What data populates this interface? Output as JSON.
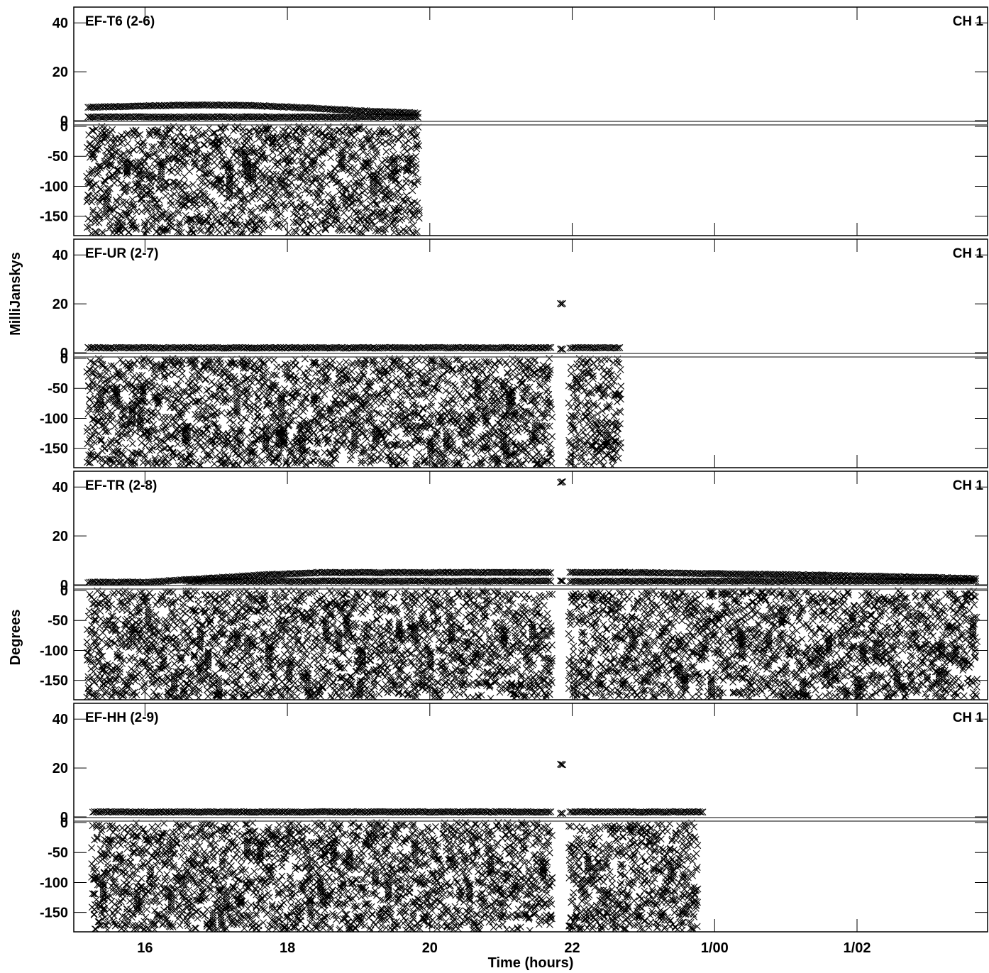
{
  "chart_data": {
    "type": "scatter",
    "marker": "x",
    "marker_color": "#000000",
    "xlabel": "Time (hours)",
    "x_range": [
      "15:00",
      "27:50"
    ],
    "x_ticks": [
      {
        "value": "16:00",
        "label": "16"
      },
      {
        "value": "18:00",
        "label": "18"
      },
      {
        "value": "20:00",
        "label": "20"
      },
      {
        "value": "22:00",
        "label": "22"
      },
      {
        "value": "24:00",
        "label": "1/00"
      },
      {
        "value": "26:00",
        "label": "1/02"
      }
    ],
    "y_axis_labels": [
      "MilliJanskys",
      "Degrees"
    ],
    "panels": [
      {
        "label": "EF-T6 (2-6)",
        "channel": "CH 1",
        "ylabel": "MilliJanskys",
        "amp_range_mJy": [
          0,
          45
        ],
        "amp_ticks": [
          40,
          20,
          0
        ],
        "phase_range_deg": [
          -180,
          0
        ],
        "phase_ticks": [
          0,
          -50,
          -100,
          -150
        ],
        "series": [
          {
            "name": "amplitude",
            "unit": "mJy",
            "segments": [
              {
                "start": "15:12",
                "end": "19:50",
                "values": [
                  5.5,
                  6.0,
                  6.4,
                  6.2,
                  5.2,
                  4.0,
                  3.0
                ]
              }
            ]
          },
          {
            "name": "phase",
            "unit": "deg",
            "segments": [
              {
                "start": "15:12",
                "end": "19:50",
                "range": [
                  -180,
                  0
                ]
              }
            ]
          }
        ]
      },
      {
        "label": "EF-UR (2-7)",
        "channel": "CH 1",
        "ylabel": "MilliJanskys",
        "amp_range_mJy": [
          0,
          45
        ],
        "amp_ticks": [
          40,
          20,
          0
        ],
        "phase_range_deg": [
          -180,
          0
        ],
        "phase_ticks": [
          0,
          -50,
          -100,
          -150
        ],
        "series": [
          {
            "name": "amplitude",
            "unit": "mJy",
            "segments": [
              {
                "start": "15:12",
                "end": "21:42",
                "values": [
                  2.0,
                  2.0,
                  2.0,
                  2.0
                ]
              },
              {
                "start": "21:50",
                "end": "21:52",
                "values": [
                  20.0
                ]
              },
              {
                "start": "21:58",
                "end": "22:40",
                "values": [
                  2.0,
                  2.0
                ]
              }
            ]
          },
          {
            "name": "phase",
            "unit": "deg",
            "segments": [
              {
                "start": "15:12",
                "end": "21:42",
                "range": [
                  -180,
                  0
                ]
              },
              {
                "start": "21:58",
                "end": "22:40",
                "range": [
                  -180,
                  0
                ]
              }
            ]
          }
        ]
      },
      {
        "label": "EF-TR (2-8)",
        "channel": "CH 1",
        "ylabel": "Degrees",
        "amp_range_mJy": [
          0,
          45
        ],
        "amp_ticks": [
          40,
          20,
          0
        ],
        "phase_range_deg": [
          -180,
          0
        ],
        "phase_ticks": [
          0,
          -50,
          -100,
          -150
        ],
        "series": [
          {
            "name": "amplitude",
            "unit": "mJy",
            "segments": [
              {
                "start": "15:12",
                "end": "21:42",
                "values": [
                  1.0,
                  1.0,
                  2.5,
                  4.0,
                  5.0,
                  5.0,
                  5.0,
                  5.0,
                  5.0
                ]
              },
              {
                "start": "21:50",
                "end": "21:52",
                "values": [
                  42.0
                ]
              },
              {
                "start": "21:58",
                "end": "27:40",
                "values": [
                  5.0,
                  5.0,
                  4.6,
                  4.2,
                  3.8,
                  3.2,
                  2.5
                ]
              }
            ]
          },
          {
            "name": "phase",
            "unit": "deg",
            "segments": [
              {
                "start": "15:12",
                "end": "21:42",
                "range": [
                  -180,
                  0
                ]
              },
              {
                "start": "21:58",
                "end": "27:40",
                "range": [
                  -180,
                  0
                ]
              }
            ]
          }
        ]
      },
      {
        "label": "EF-HH (2-9)",
        "channel": "CH 1",
        "ylabel": "Degrees",
        "amp_range_mJy": [
          0,
          45
        ],
        "amp_ticks": [
          40,
          20,
          0
        ],
        "phase_range_deg": [
          -180,
          0
        ],
        "phase_ticks": [
          0,
          -50,
          -100,
          -150
        ],
        "series": [
          {
            "name": "amplitude",
            "unit": "mJy",
            "segments": [
              {
                "start": "15:16",
                "end": "21:42",
                "values": [
                  2.0,
                  2.0,
                  2.0,
                  2.0
                ]
              },
              {
                "start": "21:50",
                "end": "21:52",
                "values": [
                  21.5
                ]
              },
              {
                "start": "21:58",
                "end": "23:50",
                "values": [
                  2.0,
                  2.0,
                  2.0
                ]
              }
            ]
          },
          {
            "name": "phase",
            "unit": "deg",
            "segments": [
              {
                "start": "15:16",
                "end": "21:42",
                "range": [
                  -180,
                  0
                ]
              },
              {
                "start": "21:58",
                "end": "23:45",
                "range": [
                  -180,
                  0
                ]
              }
            ]
          }
        ]
      }
    ]
  }
}
